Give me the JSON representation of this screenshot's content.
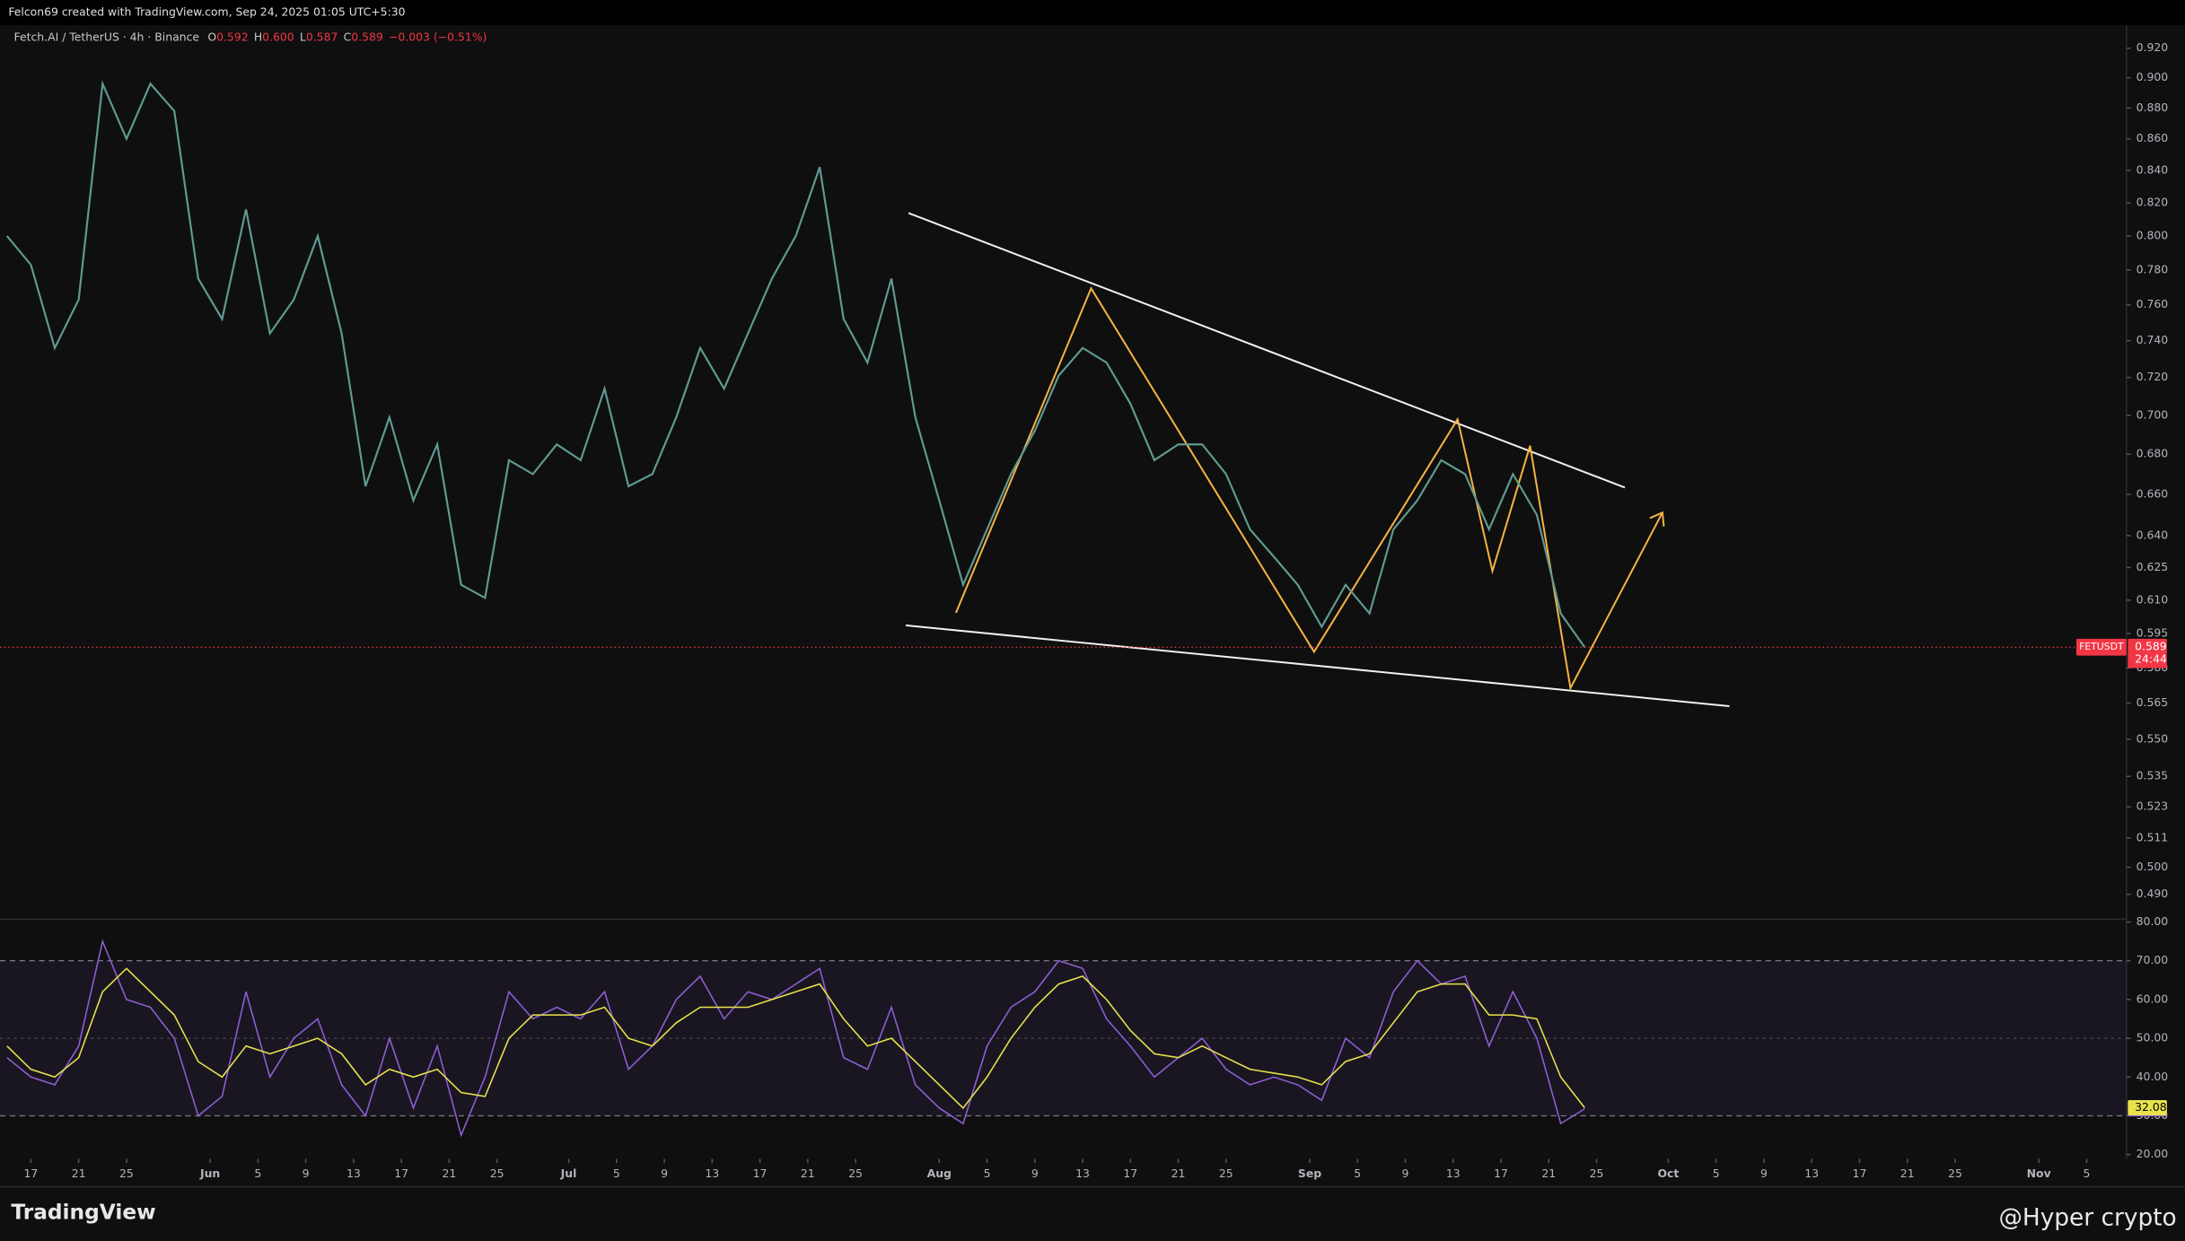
{
  "header": {
    "credit": "Felcon69 created with TradingView.com, Sep 24, 2025 01:05 UTC+5:30",
    "symbol": "Fetch.AI / TetherUS · 4h · Binance",
    "ohlc": [
      {
        "label": "O",
        "value": "0.592"
      },
      {
        "label": "H",
        "value": "0.600"
      },
      {
        "label": "L",
        "value": "0.587"
      },
      {
        "label": "C",
        "value": "0.589"
      }
    ],
    "change": "−0.003 (−0.51%)"
  },
  "footer": {
    "brand": "TradingView",
    "watermark": "@Hyper crypto"
  },
  "chart_data": [
    {
      "type": "line",
      "log_scale": true,
      "symbol_tag": "FETUSDT",
      "countdown": "24:44",
      "xlim": [
        "2025-05-14T10:00:00Z",
        "2025-11-08T08:00:00Z"
      ],
      "ylim": [
        0.481,
        0.936
      ],
      "yticks": [
        {
          "value": 0.92,
          "label": "0.920"
        },
        {
          "value": 0.9,
          "label": "0.900"
        },
        {
          "value": 0.88,
          "label": "0.880"
        },
        {
          "value": 0.86,
          "label": "0.860"
        },
        {
          "value": 0.84,
          "label": "0.840"
        },
        {
          "value": 0.82,
          "label": "0.820"
        },
        {
          "value": 0.8,
          "label": "0.800"
        },
        {
          "value": 0.78,
          "label": "0.780"
        },
        {
          "value": 0.76,
          "label": "0.760"
        },
        {
          "value": 0.74,
          "label": "0.740"
        },
        {
          "value": 0.72,
          "label": "0.720"
        },
        {
          "value": 0.7,
          "label": "0.700"
        },
        {
          "value": 0.68,
          "label": "0.680"
        },
        {
          "value": 0.66,
          "label": "0.660"
        },
        {
          "value": 0.64,
          "label": "0.640"
        },
        {
          "value": 0.625,
          "label": "0.625"
        },
        {
          "value": 0.61,
          "label": "0.610"
        },
        {
          "value": 0.595,
          "label": "0.595"
        },
        {
          "value": 0.58,
          "label": "0.580"
        },
        {
          "value": 0.565,
          "label": "0.565"
        },
        {
          "value": 0.55,
          "label": "0.550"
        },
        {
          "value": 0.535,
          "label": "0.535"
        },
        {
          "value": 0.523,
          "label": "0.523"
        },
        {
          "value": 0.511,
          "label": "0.511"
        },
        {
          "value": 0.5,
          "label": "0.500"
        },
        {
          "value": 0.49,
          "label": "0.490"
        }
      ],
      "x": [
        "2025-05-15",
        "2025-05-17",
        "2025-05-19",
        "2025-05-21",
        "2025-05-23",
        "2025-05-25",
        "2025-05-27",
        "2025-05-29",
        "2025-05-31",
        "2025-06-02",
        "2025-06-04",
        "2025-06-06",
        "2025-06-08",
        "2025-06-10",
        "2025-06-12",
        "2025-06-14",
        "2025-06-16",
        "2025-06-18",
        "2025-06-20",
        "2025-06-22",
        "2025-06-24",
        "2025-06-26",
        "2025-06-28",
        "2025-06-30",
        "2025-07-02",
        "2025-07-04",
        "2025-07-06",
        "2025-07-08",
        "2025-07-10",
        "2025-07-12",
        "2025-07-14",
        "2025-07-16",
        "2025-07-18",
        "2025-07-20",
        "2025-07-22",
        "2025-07-24",
        "2025-07-26",
        "2025-07-28",
        "2025-07-30",
        "2025-08-01",
        "2025-08-03",
        "2025-08-05",
        "2025-08-07",
        "2025-08-09",
        "2025-08-11",
        "2025-08-13",
        "2025-08-15",
        "2025-08-17",
        "2025-08-19",
        "2025-08-21",
        "2025-08-23",
        "2025-08-25",
        "2025-08-27",
        "2025-08-29",
        "2025-08-31",
        "2025-09-02",
        "2025-09-04",
        "2025-09-06",
        "2025-09-08",
        "2025-09-10",
        "2025-09-12",
        "2025-09-14",
        "2025-09-16",
        "2025-09-18",
        "2025-09-20",
        "2025-09-22",
        "2025-09-24"
      ],
      "series": [
        {
          "color": "#5f9a92",
          "values": [
            0.8,
            0.783,
            0.736,
            0.763,
            0.896,
            0.86,
            0.896,
            0.878,
            0.775,
            0.752,
            0.816,
            0.744,
            0.763,
            0.8,
            0.744,
            0.664,
            0.699,
            0.657,
            0.685,
            0.617,
            0.611,
            0.677,
            0.67,
            0.685,
            0.677,
            0.714,
            0.664,
            0.67,
            0.699,
            0.736,
            0.714,
            0.744,
            0.775,
            0.8,
            0.842,
            0.752,
            0.728,
            0.775,
            0.699,
            0.657,
            0.617,
            0.643,
            0.67,
            0.692,
            0.721,
            0.736,
            0.728,
            0.706,
            0.677,
            0.685,
            0.685,
            0.67,
            0.643,
            0.63,
            0.617,
            0.598,
            0.617,
            0.604,
            0.643,
            0.657,
            0.677,
            0.67,
            0.643,
            0.67,
            0.65,
            0.604,
            0.589
          ]
        }
      ]
    },
    {
      "type": "line",
      "band": [
        30,
        70
      ],
      "midline": 50,
      "xlim": [
        "2025-05-14T10:00:00Z",
        "2025-11-08T08:00:00Z"
      ],
      "ylim": [
        18.9,
        80.7
      ],
      "yticks": [
        {
          "value": 80,
          "label": "80.00"
        },
        {
          "value": 70,
          "label": "70.00"
        },
        {
          "value": 60,
          "label": "60.00"
        },
        {
          "value": 50,
          "label": "50.00"
        },
        {
          "value": 40,
          "label": "40.00"
        },
        {
          "value": 30,
          "label": "30.00"
        },
        {
          "value": 20,
          "label": "20.00"
        }
      ],
      "xticks": [
        {
          "value": "2025-05-17",
          "label": "17"
        },
        {
          "value": "2025-05-21",
          "label": "21"
        },
        {
          "value": "2025-05-25",
          "label": "25"
        },
        {
          "value": "2025-06-01",
          "label": "Jun"
        },
        {
          "value": "2025-06-05",
          "label": "5"
        },
        {
          "value": "2025-06-09",
          "label": "9"
        },
        {
          "value": "2025-06-13",
          "label": "13"
        },
        {
          "value": "2025-06-17",
          "label": "17"
        },
        {
          "value": "2025-06-21",
          "label": "21"
        },
        {
          "value": "2025-06-25",
          "label": "25"
        },
        {
          "value": "2025-07-01",
          "label": "Jul"
        },
        {
          "value": "2025-07-05",
          "label": "5"
        },
        {
          "value": "2025-07-09",
          "label": "9"
        },
        {
          "value": "2025-07-13",
          "label": "13"
        },
        {
          "value": "2025-07-17",
          "label": "17"
        },
        {
          "value": "2025-07-21",
          "label": "21"
        },
        {
          "value": "2025-07-25",
          "label": "25"
        },
        {
          "value": "2025-08-01",
          "label": "Aug"
        },
        {
          "value": "2025-08-05",
          "label": "5"
        },
        {
          "value": "2025-08-09",
          "label": "9"
        },
        {
          "value": "2025-08-13",
          "label": "13"
        },
        {
          "value": "2025-08-17",
          "label": "17"
        },
        {
          "value": "2025-08-21",
          "label": "21"
        },
        {
          "value": "2025-08-25",
          "label": "25"
        },
        {
          "value": "2025-09-01",
          "label": "Sep"
        },
        {
          "value": "2025-09-05",
          "label": "5"
        },
        {
          "value": "2025-09-09",
          "label": "9"
        },
        {
          "value": "2025-09-13",
          "label": "13"
        },
        {
          "value": "2025-09-17",
          "label": "17"
        },
        {
          "value": "2025-09-21",
          "label": "21"
        },
        {
          "value": "2025-09-25",
          "label": "25"
        },
        {
          "value": "2025-10-01",
          "label": "Oct"
        },
        {
          "value": "2025-10-05",
          "label": "5"
        },
        {
          "value": "2025-10-09",
          "label": "9"
        },
        {
          "value": "2025-10-13",
          "label": "13"
        },
        {
          "value": "2025-10-17",
          "label": "17"
        },
        {
          "value": "2025-10-21",
          "label": "21"
        },
        {
          "value": "2025-10-25",
          "label": "25"
        },
        {
          "value": "2025-11-01",
          "label": "Nov"
        },
        {
          "value": "2025-11-05",
          "label": "5"
        }
      ],
      "x": [
        "2025-05-15",
        "2025-05-17",
        "2025-05-19",
        "2025-05-21",
        "2025-05-23",
        "2025-05-25",
        "2025-05-27",
        "2025-05-29",
        "2025-05-31",
        "2025-06-02",
        "2025-06-04",
        "2025-06-06",
        "2025-06-08",
        "2025-06-10",
        "2025-06-12",
        "2025-06-14",
        "2025-06-16",
        "2025-06-18",
        "2025-06-20",
        "2025-06-22",
        "2025-06-24",
        "2025-06-26",
        "2025-06-28",
        "2025-06-30",
        "2025-07-02",
        "2025-07-04",
        "2025-07-06",
        "2025-07-08",
        "2025-07-10",
        "2025-07-12",
        "2025-07-14",
        "2025-07-16",
        "2025-07-18",
        "2025-07-20",
        "2025-07-22",
        "2025-07-24",
        "2025-07-26",
        "2025-07-28",
        "2025-07-30",
        "2025-08-01",
        "2025-08-03",
        "2025-08-05",
        "2025-08-07",
        "2025-08-09",
        "2025-08-11",
        "2025-08-13",
        "2025-08-15",
        "2025-08-17",
        "2025-08-19",
        "2025-08-21",
        "2025-08-23",
        "2025-08-25",
        "2025-08-27",
        "2025-08-29",
        "2025-08-31",
        "2025-09-02",
        "2025-09-04",
        "2025-09-06",
        "2025-09-08",
        "2025-09-10",
        "2025-09-12",
        "2025-09-14",
        "2025-09-16",
        "2025-09-18",
        "2025-09-20",
        "2025-09-22",
        "2025-09-24"
      ],
      "series": [
        {
          "color": "#8e5fd6",
          "values": [
            45,
            40,
            38,
            48,
            75,
            60,
            58,
            50,
            30,
            35,
            62,
            40,
            50,
            55,
            38,
            30,
            50,
            32,
            48,
            25,
            40,
            62,
            55,
            58,
            55,
            62,
            42,
            48,
            60,
            66,
            55,
            62,
            60,
            64,
            68,
            45,
            42,
            58,
            38,
            32,
            28,
            48,
            58,
            62,
            70,
            68,
            55,
            48,
            40,
            45,
            50,
            42,
            38,
            40,
            38,
            34,
            50,
            45,
            62,
            70,
            64,
            66,
            48,
            62,
            50,
            28,
            31.79
          ]
        },
        {
          "color": "#e8e34a",
          "values": [
            48,
            42,
            40,
            45,
            62,
            68,
            62,
            56,
            44,
            40,
            48,
            46,
            48,
            50,
            46,
            38,
            42,
            40,
            42,
            36,
            35,
            50,
            56,
            56,
            56,
            58,
            50,
            48,
            54,
            58,
            58,
            58,
            60,
            62,
            64,
            55,
            48,
            50,
            44,
            38,
            32,
            40,
            50,
            58,
            64,
            66,
            60,
            52,
            46,
            45,
            48,
            45,
            42,
            41,
            40,
            38,
            44,
            46,
            54,
            62,
            64,
            64,
            56,
            56,
            55,
            40,
            32.08
          ]
        }
      ]
    }
  ]
}
